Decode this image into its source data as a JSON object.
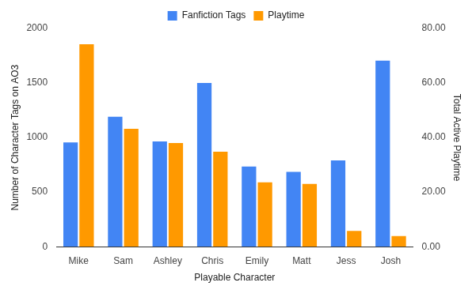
{
  "chart_data": {
    "type": "bar",
    "x_label": "Playable Character",
    "y_label": "Number of Character Tags on AO3",
    "y2_label": "Total Active Playtime",
    "categories": [
      "Mike",
      "Sam",
      "Ashley",
      "Chris",
      "Emily",
      "Matt",
      "Jess",
      "Josh"
    ],
    "series": [
      {
        "name": "Fanfiction Tags",
        "color": "#4285f4",
        "values": [
          955,
          1190,
          965,
          1500,
          735,
          685,
          790,
          1705
        ]
      },
      {
        "name": "Playtime",
        "color": "#ff9900",
        "axis": "y2",
        "values": [
          74.2,
          43.2,
          38,
          34.8,
          23.6,
          23,
          5.8,
          3.9
        ]
      }
    ],
    "ylim": [
      0,
      2000
    ],
    "yticks": [
      0,
      500,
      1000,
      1500,
      2000
    ],
    "y2lim": [
      0,
      80
    ],
    "y2ticks": [
      {
        "value": 0,
        "label": "0.00"
      },
      {
        "value": 20,
        "label": "20.00"
      },
      {
        "value": 40,
        "label": "40.00"
      },
      {
        "value": 60,
        "label": "60.00"
      },
      {
        "value": 80,
        "label": "80.00"
      }
    ],
    "grid": false,
    "legend": "top"
  }
}
